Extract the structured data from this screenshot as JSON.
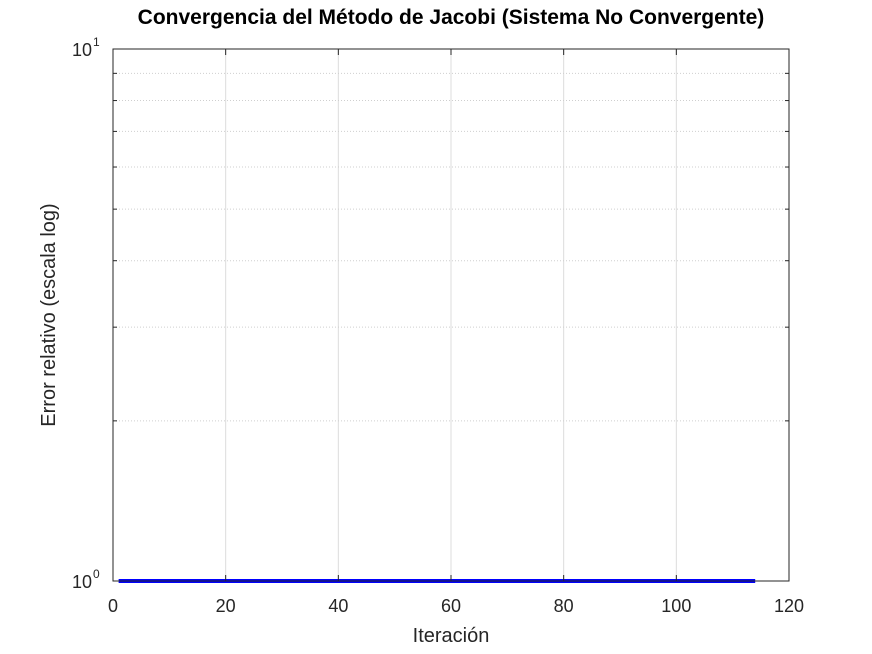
{
  "chart_data": {
    "type": "line",
    "title": "Convergencia del Método de Jacobi (Sistema No Convergente)",
    "xlabel": "Iteración",
    "ylabel": "Error relativo (escala log)",
    "xlim": [
      0,
      120
    ],
    "ylim": [
      1,
      10
    ],
    "yscale": "log",
    "grid": true,
    "x_ticks": [
      "0",
      "20",
      "40",
      "60",
      "80",
      "100",
      "120"
    ],
    "y_ticks": [
      {
        "base": "10",
        "exp": "0"
      },
      {
        "base": "10",
        "exp": "1"
      }
    ],
    "series": [
      {
        "color": "#0000ff",
        "x": [
          1,
          114
        ],
        "y": [
          1,
          1
        ]
      }
    ]
  }
}
